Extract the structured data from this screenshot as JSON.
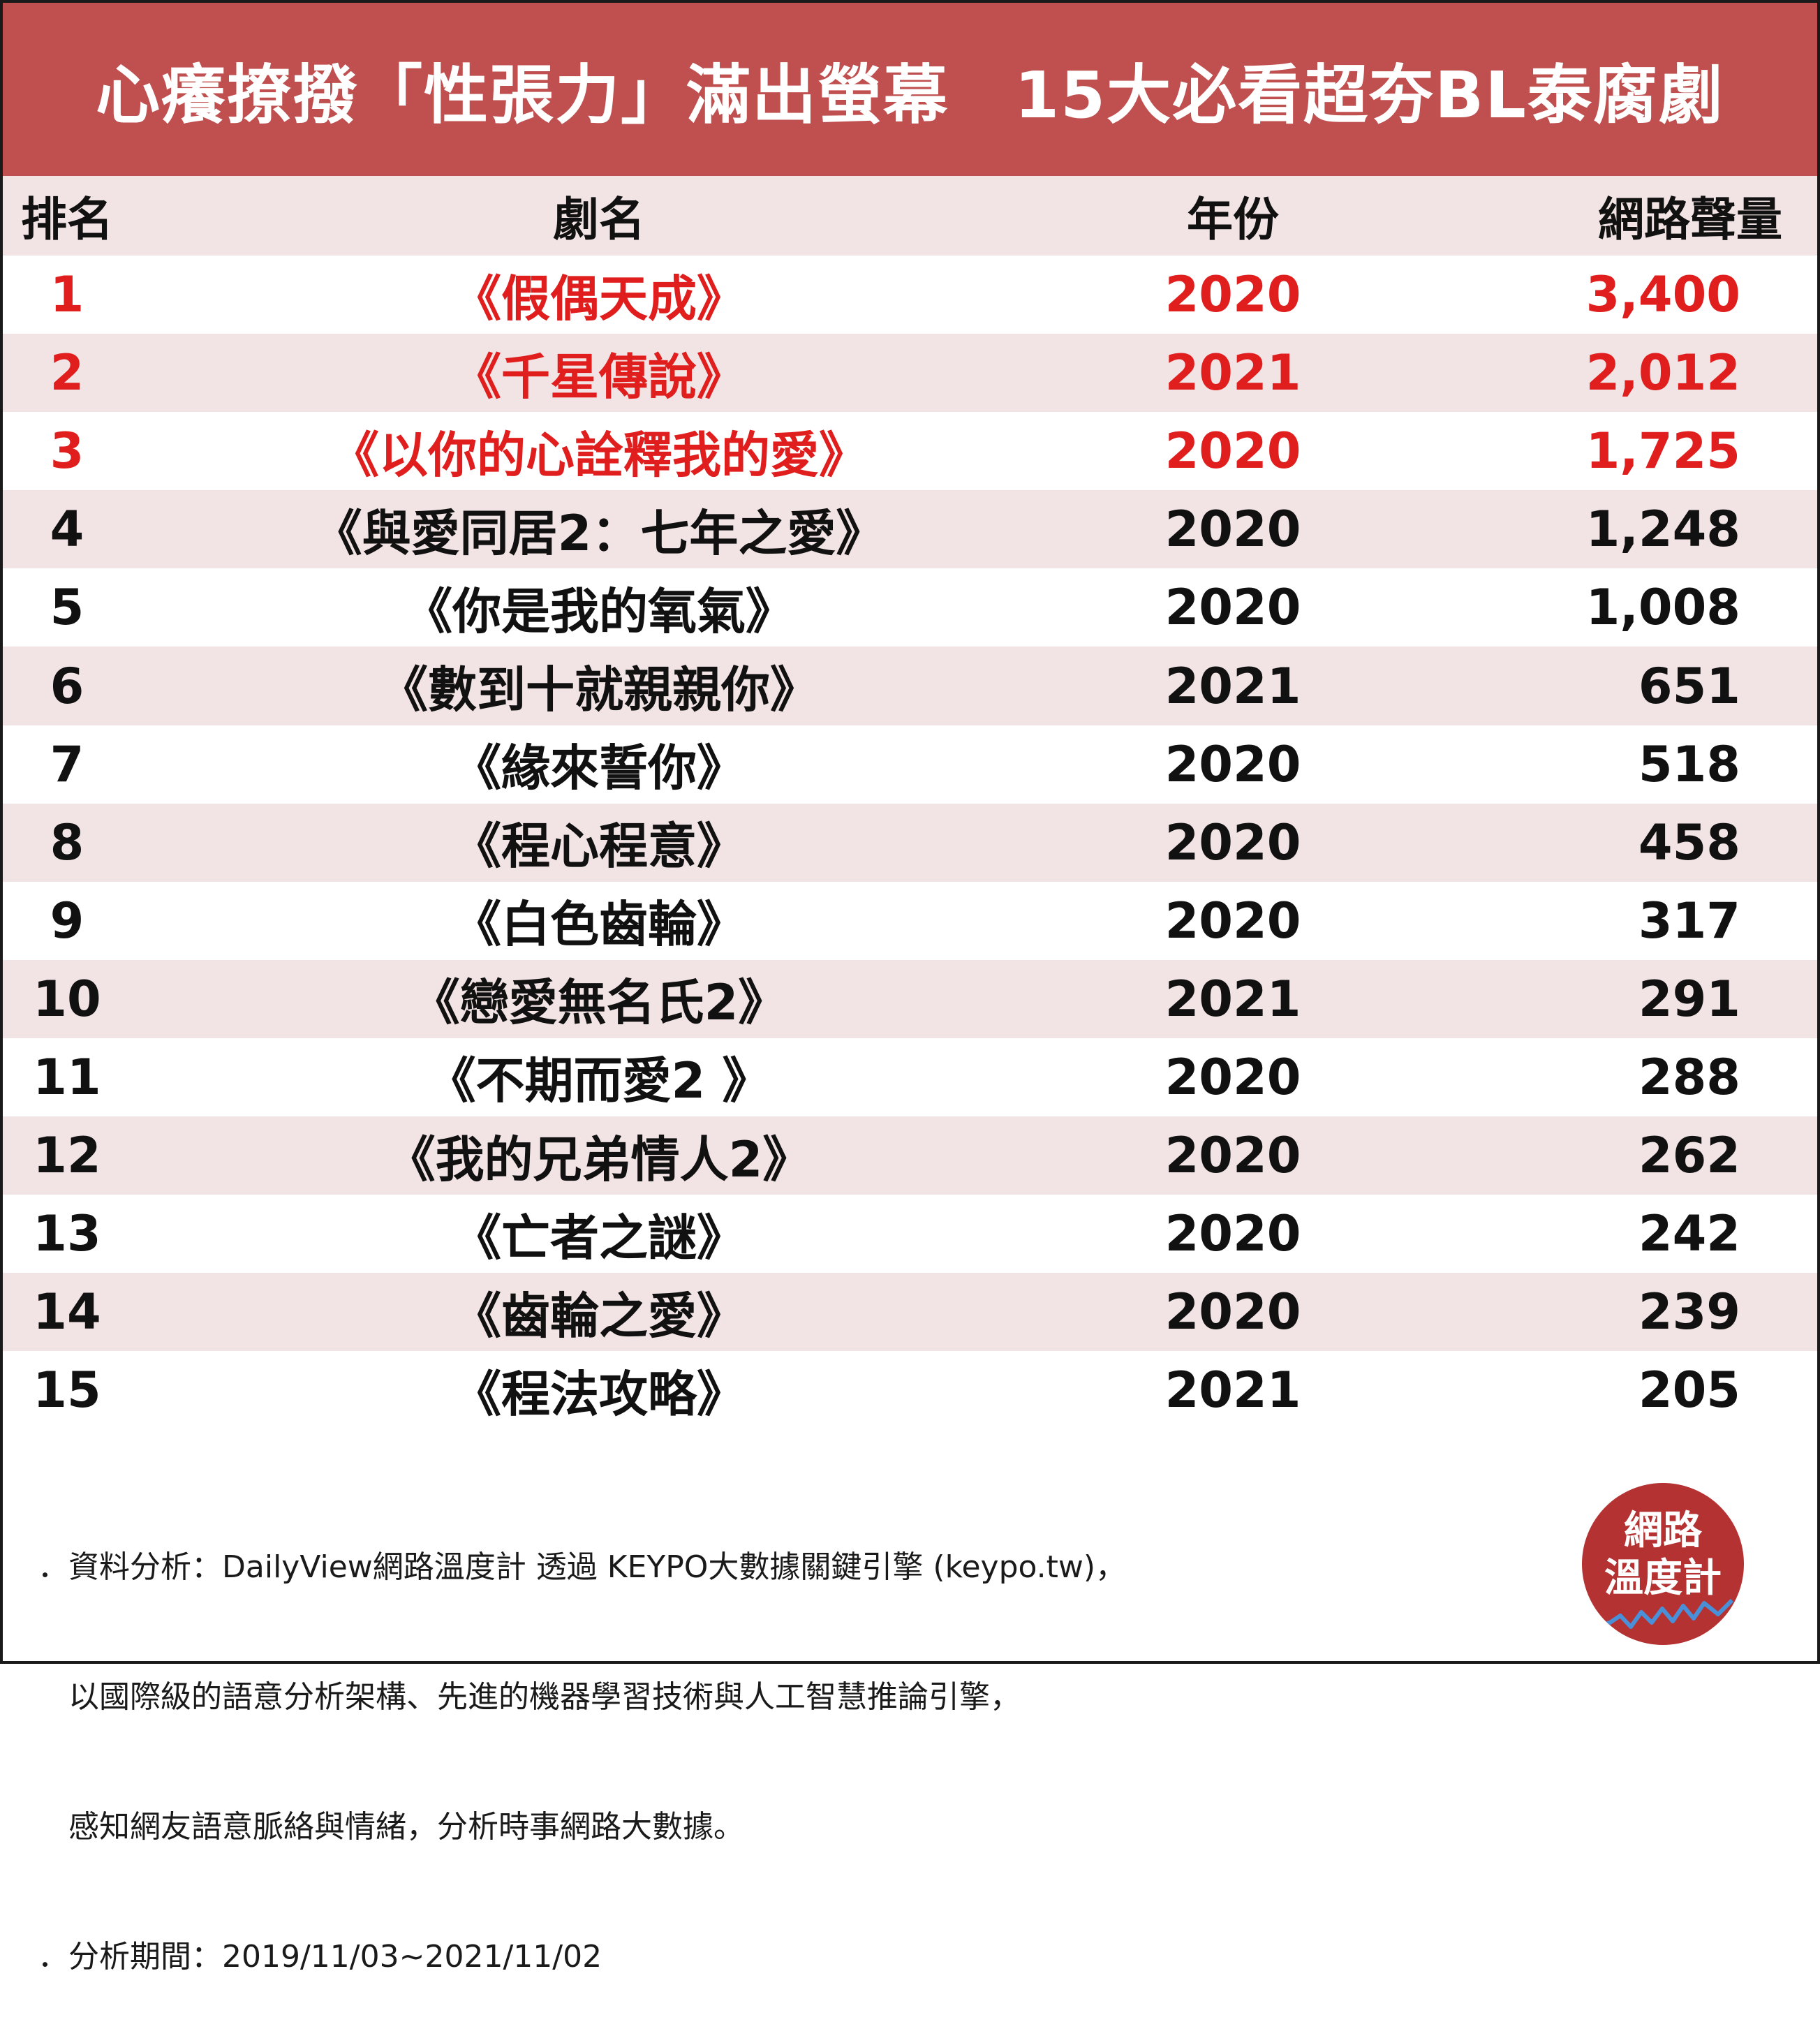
{
  "title": "心癢撩撥「性張力」滿出螢幕　15大必看超夯BL泰腐劇",
  "headers": {
    "rank": "排名",
    "title": "劇名",
    "year": "年份",
    "volume": "網路聲量"
  },
  "rows": [
    {
      "rank": "1",
      "title": "《假偶天成》",
      "year": "2020",
      "volume": "3,400",
      "highlight": true
    },
    {
      "rank": "2",
      "title": "《千星傳說》",
      "year": "2021",
      "volume": "2,012",
      "highlight": true
    },
    {
      "rank": "3",
      "title": "《以你的心詮釋我的愛》",
      "year": "2020",
      "volume": "1,725",
      "highlight": true
    },
    {
      "rank": "4",
      "title": "《與愛同居2：七年之愛》",
      "year": "2020",
      "volume": "1,248",
      "highlight": false
    },
    {
      "rank": "5",
      "title": "《你是我的氧氣》",
      "year": "2020",
      "volume": "1,008",
      "highlight": false
    },
    {
      "rank": "6",
      "title": "《數到十就親親你》",
      "year": "2021",
      "volume": "651",
      "highlight": false
    },
    {
      "rank": "7",
      "title": "《緣來誓你》",
      "year": "2020",
      "volume": "518",
      "highlight": false
    },
    {
      "rank": "8",
      "title": "《程心程意》",
      "year": "2020",
      "volume": "458",
      "highlight": false
    },
    {
      "rank": "9",
      "title": "《白色齒輪》",
      "year": "2020",
      "volume": "317",
      "highlight": false
    },
    {
      "rank": "10",
      "title": "《戀愛無名氏2》",
      "year": "2021",
      "volume": "291",
      "highlight": false
    },
    {
      "rank": "11",
      "title": "《不期而愛2 》",
      "year": "2020",
      "volume": "288",
      "highlight": false
    },
    {
      "rank": "12",
      "title": "《我的兄弟情人2》",
      "year": "2020",
      "volume": "262",
      "highlight": false
    },
    {
      "rank": "13",
      "title": "《亡者之謎》",
      "year": "2020",
      "volume": "242",
      "highlight": false
    },
    {
      "rank": "14",
      "title": "《齒輪之愛》",
      "year": "2020",
      "volume": "239",
      "highlight": false
    },
    {
      "rank": "15",
      "title": "《程法攻略》",
      "year": "2021",
      "volume": "205",
      "highlight": false
    }
  ],
  "notes": [
    "．資料分析：DailyView網路溫度計 透過 KEYPO大數據關鍵引擎 (keypo.tw)，",
    "　以國際級的語意分析架構、先進的機器學習技術與人工智慧推論引擎，",
    "　感知網友語意脈絡與情緒，分析時事網路大數據。",
    "．分析期間：2019/11/03~2021/11/02"
  ],
  "badge": {
    "line1": "網路",
    "line2": "溫度計"
  },
  "colors": {
    "banner": "#c0504f",
    "alt_row": "#f2e4e4",
    "highlight_text": "#e01e1e",
    "badge": "#b43232"
  }
}
